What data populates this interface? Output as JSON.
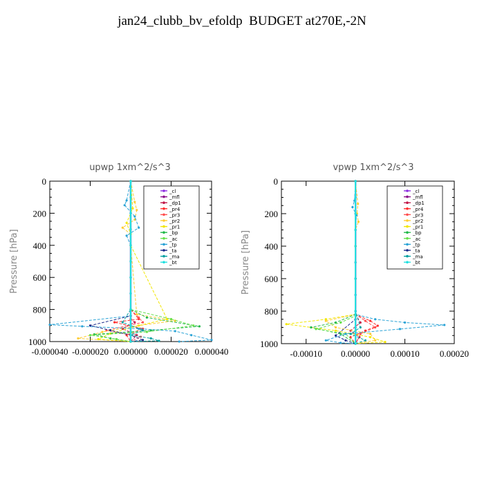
{
  "title": "jan24_clubb_bv_efoldp  BUDGET at270E,-2N",
  "legend_entries": [
    {
      "label": "_cl",
      "color": "#8b2be2"
    },
    {
      "label": "_mfl",
      "color": "#8b0a8b"
    },
    {
      "label": "_dp1",
      "color": "#c0184a"
    },
    {
      "label": "_pr4",
      "color": "#ff2d2d"
    },
    {
      "label": "_pr3",
      "color": "#ff4f4f"
    },
    {
      "label": "_pr2",
      "color": "#ffcc33"
    },
    {
      "label": "_pr1",
      "color": "#f2e600"
    },
    {
      "label": "_bp",
      "color": "#22b84a"
    },
    {
      "label": "_ac",
      "color": "#66e04a"
    },
    {
      "label": "_tp",
      "color": "#2aa3d6"
    },
    {
      "label": "_ta",
      "color": "#1b2a8a"
    },
    {
      "label": "_ma",
      "color": "#00a0a0"
    },
    {
      "label": "_bt",
      "color": "#22e0e0"
    }
  ],
  "chart_data": [
    {
      "type": "line",
      "title": "upwp   1xm^2/s^3",
      "xlabel": "",
      "ylabel": "Pressure [hPa]",
      "xlim": [
        -4e-05,
        4e-05
      ],
      "ylim": [
        1000,
        0
      ],
      "y_ticks": [
        0,
        200,
        400,
        600,
        800,
        1000
      ],
      "x_tick_labels": [
        "-0.000040",
        "-0.000020",
        "0.000000",
        "0.000020",
        "0.000040"
      ],
      "legend_position": "top-right",
      "series": [
        {
          "name": "_cl",
          "x": [
            0,
            0,
            0,
            0,
            0,
            0,
            0,
            0,
            0,
            0,
            0
          ],
          "y": [
            0,
            100,
            200,
            300,
            400,
            500,
            600,
            700,
            800,
            900,
            1000
          ]
        },
        {
          "name": "_mfl",
          "x": [
            0,
            0,
            0,
            0,
            0,
            0,
            0,
            0,
            0,
            0,
            0
          ],
          "y": [
            0,
            100,
            200,
            300,
            400,
            500,
            600,
            700,
            800,
            900,
            1000
          ]
        },
        {
          "name": "_dp1",
          "x": [
            0,
            0,
            0,
            0,
            2e-06,
            -4e-06,
            3e-06,
            0
          ],
          "y": [
            0,
            400,
            800,
            860,
            880,
            920,
            960,
            1000
          ]
        },
        {
          "name": "_pr4",
          "x": [
            0,
            0,
            0,
            4e-06,
            -8e-06,
            6e-06,
            -2e-06,
            0
          ],
          "y": [
            0,
            400,
            800,
            860,
            880,
            920,
            960,
            1000
          ]
        },
        {
          "name": "_pr3",
          "x": [
            0,
            0,
            0,
            4e-06,
            6e-06,
            -1.2e-05,
            5e-06,
            0
          ],
          "y": [
            0,
            400,
            800,
            850,
            880,
            930,
            970,
            1000
          ]
        },
        {
          "name": "_pr2",
          "x": [
            0,
            2e-06,
            3e-06,
            2e-06,
            -4e-06,
            0,
            0,
            3e-06,
            2.2e-05,
            4e-06,
            -1.4e-05,
            -2.6e-05,
            0
          ],
          "y": [
            0,
            130,
            180,
            240,
            290,
            330,
            400,
            830,
            870,
            900,
            940,
            980,
            1000
          ]
        },
        {
          "name": "_pr1",
          "x": [
            0,
            1e-06,
            -2e-06,
            0,
            0,
            1.8e-05,
            4e-06,
            -1e-05,
            -1.6e-05,
            0
          ],
          "y": [
            0,
            170,
            260,
            330,
            400,
            860,
            900,
            950,
            985,
            1000
          ]
        },
        {
          "name": "_bp",
          "x": [
            0,
            0,
            0,
            8e-06,
            3.4e-05,
            1e-05,
            -1.8e-05,
            -1e-05,
            0
          ],
          "y": [
            0,
            600,
            800,
            850,
            905,
            930,
            955,
            980,
            1000
          ]
        },
        {
          "name": "_ac",
          "x": [
            0,
            0,
            0,
            2e-05,
            3.1e-05,
            8e-06,
            -2e-05,
            -7e-06,
            0
          ],
          "y": [
            0,
            600,
            800,
            860,
            900,
            940,
            960,
            985,
            1000
          ]
        },
        {
          "name": "_tp",
          "x": [
            0,
            -2e-06,
            -3e-06,
            2e-06,
            4e-06,
            -2e-06,
            0,
            0,
            -4e-05,
            -2.4e-05,
            4e-06,
            2.2e-05,
            3e-05,
            4e-05,
            2.4e-05
          ],
          "y": [
            0,
            120,
            150,
            220,
            290,
            340,
            400,
            840,
            895,
            905,
            920,
            935,
            960,
            990,
            1000
          ]
        },
        {
          "name": "_ta",
          "x": [
            0,
            0,
            0,
            -2e-05,
            -1e-05,
            0,
            6e-06,
            0
          ],
          "y": [
            0,
            600,
            840,
            900,
            930,
            960,
            990,
            1000
          ]
        },
        {
          "name": "_ma",
          "x": [
            0,
            0,
            -4e-06,
            6e-06,
            0,
            1e-05,
            1.4e-05,
            0
          ],
          "y": [
            0,
            800,
            880,
            930,
            960,
            980,
            995,
            1000
          ]
        },
        {
          "name": "_bt",
          "x": [
            0,
            0,
            0,
            0,
            0,
            0,
            0,
            0,
            0,
            0,
            0
          ],
          "y": [
            0,
            100,
            200,
            300,
            400,
            500,
            600,
            700,
            800,
            900,
            1000
          ]
        }
      ]
    },
    {
      "type": "line",
      "title": "vpwp   1xm^2/s^3",
      "xlabel": "",
      "ylabel": "Pressure [hPa]",
      "xlim": [
        -0.00015,
        0.0002
      ],
      "ylim": [
        1000,
        0
      ],
      "y_ticks": [
        0,
        200,
        400,
        600,
        800,
        1000
      ],
      "x_tick_labels": [
        "-0.00010",
        "0.00000",
        "0.00010",
        "0.00020"
      ],
      "legend_position": "top-right",
      "series": [
        {
          "name": "_cl",
          "x": [
            0,
            0,
            0,
            0,
            0,
            0,
            0,
            0,
            0,
            0,
            0
          ],
          "y": [
            0,
            100,
            200,
            300,
            400,
            500,
            600,
            700,
            800,
            900,
            1000
          ]
        },
        {
          "name": "_mfl",
          "x": [
            0,
            0,
            0,
            0,
            0,
            0,
            0,
            0,
            0,
            0,
            0
          ],
          "y": [
            0,
            100,
            200,
            300,
            400,
            500,
            600,
            700,
            800,
            900,
            1000
          ]
        },
        {
          "name": "_dp1",
          "x": [
            0,
            0,
            0,
            1e-05,
            -1e-05,
            8e-06,
            0
          ],
          "y": [
            0,
            400,
            820,
            870,
            920,
            960,
            1000
          ]
        },
        {
          "name": "_pr4",
          "x": [
            0,
            0,
            0,
            3e-05,
            4.5e-05,
            2e-05,
            -1e-05,
            0
          ],
          "y": [
            0,
            400,
            820,
            860,
            890,
            920,
            960,
            1000
          ]
        },
        {
          "name": "_pr3",
          "x": [
            0,
            0,
            0,
            2e-05,
            4e-05,
            1e-05,
            0
          ],
          "y": [
            0,
            400,
            820,
            860,
            900,
            940,
            1000
          ]
        },
        {
          "name": "_pr2",
          "x": [
            0,
            5e-06,
            3e-06,
            6e-06,
            0,
            0,
            -6e-05,
            -4e-05,
            3e-05,
            4e-05,
            0
          ],
          "y": [
            0,
            140,
            200,
            250,
            300,
            820,
            860,
            900,
            940,
            980,
            1000
          ]
        },
        {
          "name": "_pr1",
          "x": [
            0,
            0,
            0,
            -6e-05,
            -0.00014,
            -4e-05,
            3e-05,
            6e-05,
            0
          ],
          "y": [
            0,
            400,
            820,
            850,
            880,
            920,
            960,
            990,
            1000
          ]
        },
        {
          "name": "_bp",
          "x": [
            0,
            0,
            0,
            -4e-05,
            -9e-05,
            -3e-05,
            0
          ],
          "y": [
            0,
            600,
            820,
            870,
            900,
            940,
            1000
          ]
        },
        {
          "name": "_ac",
          "x": [
            0,
            0,
            0,
            -3e-05,
            -8e-05,
            -2e-05,
            0
          ],
          "y": [
            0,
            600,
            830,
            870,
            910,
            940,
            1000
          ]
        },
        {
          "name": "_tp",
          "x": [
            0,
            -2e-06,
            -6e-06,
            2e-06,
            0,
            0,
            4e-05,
            0.0001,
            0.00018,
            9e-05,
            -2e-05,
            -6e-05,
            -3e-05,
            0
          ],
          "y": [
            0,
            120,
            160,
            210,
            300,
            820,
            850,
            870,
            885,
            910,
            940,
            980,
            995,
            1000
          ]
        },
        {
          "name": "_ta",
          "x": [
            0,
            0,
            0,
            -4e-05,
            -2e-05,
            0
          ],
          "y": [
            0,
            600,
            850,
            950,
            980,
            1000
          ]
        },
        {
          "name": "_ma",
          "x": [
            0,
            0,
            1e-05,
            -1e-05,
            2e-05,
            0
          ],
          "y": [
            0,
            800,
            900,
            940,
            980,
            1000
          ]
        },
        {
          "name": "_bt",
          "x": [
            0,
            0,
            0,
            0,
            0,
            0,
            0,
            0,
            0,
            0,
            0
          ],
          "y": [
            0,
            100,
            200,
            300,
            400,
            500,
            600,
            700,
            800,
            900,
            1000
          ]
        }
      ]
    }
  ]
}
